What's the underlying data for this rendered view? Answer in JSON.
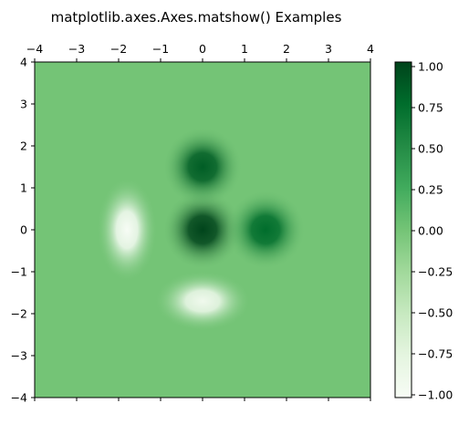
{
  "chart_data": {
    "type": "heatmap",
    "title": "matplotlib.axes.Axes.matshow() Examples",
    "xlabel": "",
    "ylabel": "",
    "xlim": [
      -4,
      4
    ],
    "ylim": [
      -4,
      4
    ],
    "x_ticks": [
      "−4",
      "−3",
      "−2",
      "−1",
      "0",
      "1",
      "2",
      "3",
      "4"
    ],
    "y_ticks": [
      "4",
      "3",
      "2",
      "1",
      "0",
      "−1",
      "−2",
      "−3",
      "−4"
    ],
    "x_axis_position": "top",
    "grid": false,
    "colormap": "Greens",
    "colorbar": {
      "min": -1.0,
      "max": 1.0,
      "ticks": [
        "1.00",
        "0.75",
        "0.50",
        "0.25",
        "0.00",
        "−0.25",
        "−0.50",
        "−0.75",
        "−1.00"
      ],
      "position": "right"
    },
    "features": [
      {
        "kind": "peak",
        "x": 0.0,
        "y": 0.0,
        "value": 1.0
      },
      {
        "kind": "peak",
        "x": 0.0,
        "y": 1.5,
        "value": 0.85
      },
      {
        "kind": "peak",
        "x": 1.5,
        "y": 0.0,
        "value": 0.75
      },
      {
        "kind": "trough",
        "x": -1.8,
        "y": 0.0,
        "value": -1.0
      },
      {
        "kind": "trough",
        "x": 0.0,
        "y": -1.7,
        "value": -0.9
      }
    ],
    "background_value": 0.0
  }
}
